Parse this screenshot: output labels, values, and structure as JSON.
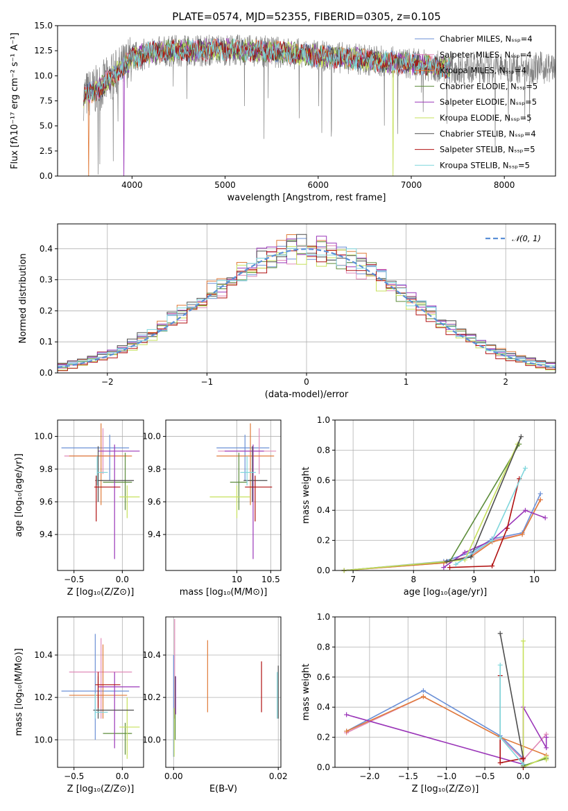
{
  "colors": {
    "chabrier_miles": "#6a8fd6",
    "salpeter_miles": "#e08ab8",
    "kroupa_miles": "#e07b3a",
    "chabrier_elodie": "#5c8c3a",
    "salpeter_elodie": "#9a35b8",
    "kroupa_elodie": "#c6e05a",
    "chabrier_stelib": "#4d4d4d",
    "salpeter_stelib": "#b01010",
    "kroupa_stelib": "#7fd6dc",
    "data": "#808080",
    "normal": "#5b8fd6"
  },
  "chart_data": [
    {
      "type": "line",
      "title": "PLATE=0574, MJD=52355, FIBERID=0305, z=0.105",
      "xlabel": "wavelength [Angstrom, rest frame]",
      "ylabel": "Flux [fλ10⁻¹⁷ erg cm⁻² s⁻¹ A⁻¹]",
      "xlim": [
        3200,
        8550
      ],
      "ylim": [
        0,
        15
      ],
      "xticks": [
        "4000",
        "5000",
        "6000",
        "7000",
        "8000"
      ],
      "yticks": [
        "0.0",
        "2.5",
        "5.0",
        "7.5",
        "10.0",
        "12.5",
        "15.0"
      ],
      "legend_position": "right",
      "legend": [
        "Chabrier MILES, Nₛₛₚ=4",
        "Salpeter MILES, Nₛₛₚ=4",
        "Kroupa MILES, Nₛₛₚ=4",
        "Chabrier ELODIE, Nₛₛₚ=5",
        "Salpeter ELODIE, Nₛₛₚ=5",
        "Kroupa ELODIE, Nₛₛₚ=5",
        "Chabrier STELIB, Nₛₛₚ=4",
        "Salpeter STELIB, Nₛₛₚ=5",
        "Kroupa STELIB, Nₛₛₚ=5"
      ],
      "continuum": {
        "x": [
          3480,
          3600,
          3700,
          3800,
          3900,
          4000,
          4200,
          4500,
          5000,
          5500,
          6000,
          6500,
          7000,
          7400
        ],
        "y": [
          8.0,
          8.5,
          9.2,
          10.0,
          10.8,
          11.8,
          12.3,
          12.5,
          12.6,
          12.4,
          12.0,
          11.6,
          11.2,
          10.8
        ]
      },
      "data_x_range": [
        3480,
        8550
      ]
    },
    {
      "type": "line",
      "xlabel": "(data-model)/error",
      "ylabel": "Normed distribution",
      "xlim": [
        -2.5,
        2.5
      ],
      "ylim": [
        0,
        0.48
      ],
      "xticks": [
        "−2",
        "−1",
        "0",
        "1",
        "2"
      ],
      "yticks": [
        "0.0",
        "0.1",
        "0.2",
        "0.3",
        "0.4"
      ],
      "legend": [
        "𝒩(0, 1)"
      ],
      "bin_width": 0.1,
      "series": [
        {
          "name": "Chabrier MILES",
          "offset": 0.004
        },
        {
          "name": "Salpeter MILES",
          "offset": -0.006
        },
        {
          "name": "Kroupa MILES",
          "offset": 0.008
        },
        {
          "name": "Chabrier ELODIE",
          "offset": -0.004
        },
        {
          "name": "Salpeter ELODIE",
          "offset": 0.006
        },
        {
          "name": "Kroupa ELODIE",
          "offset": -0.012
        },
        {
          "name": "Chabrier STELIB",
          "offset": 0.01
        },
        {
          "name": "Salpeter STELIB",
          "offset": -0.014
        },
        {
          "name": "Kroupa STELIB",
          "offset": 0.0
        }
      ]
    },
    {
      "type": "scatter",
      "xlabel": "Z [log₁₀(Z/Z⊙)]",
      "ylabel": "age  [log₁₀(age/yr)]",
      "xlim": [
        -0.67,
        0.22
      ],
      "ylim": [
        9.18,
        10.1
      ],
      "xticks": [
        "−0.5",
        "0.0"
      ],
      "yticks": [
        "9.4",
        "9.6",
        "9.8",
        "10.0"
      ],
      "points": [
        {
          "x": -0.13,
          "y": 9.93,
          "ex": [
            -0.63,
            0.07
          ],
          "ey": [
            9.73,
            10.01
          ]
        },
        {
          "x": -0.2,
          "y": 9.88,
          "ex": [
            -0.6,
            0.05
          ],
          "ey": [
            9.77,
            10.05
          ]
        },
        {
          "x": -0.22,
          "y": 9.88,
          "ex": [
            -0.55,
            0.1
          ],
          "ey": [
            9.58,
            10.08
          ]
        },
        {
          "x": 0.03,
          "y": 9.72,
          "ex": [
            -0.2,
            0.1
          ],
          "ey": [
            9.55,
            9.9
          ]
        },
        {
          "x": -0.08,
          "y": 9.91,
          "ex": [
            -0.25,
            0.18
          ],
          "ey": [
            9.25,
            9.95
          ]
        },
        {
          "x": 0.05,
          "y": 9.63,
          "ex": [
            -0.03,
            0.18
          ],
          "ey": [
            9.5,
            9.7
          ]
        },
        {
          "x": -0.25,
          "y": 9.73,
          "ex": [
            -0.28,
            0.12
          ],
          "ey": [
            9.6,
            9.94
          ]
        },
        {
          "x": -0.27,
          "y": 9.69,
          "ex": [
            -0.29,
            -0.02
          ],
          "ey": [
            9.48,
            9.76
          ]
        },
        {
          "x": -0.26,
          "y": 9.78,
          "ex": [
            -0.26,
            -0.15
          ],
          "ey": [
            9.7,
            9.88
          ]
        }
      ]
    },
    {
      "type": "scatter",
      "xlabel": "mass [log₁₀(M/M⊙)]",
      "xlim": [
        8.95,
        10.65
      ],
      "ylim": [
        9.18,
        10.1
      ],
      "xticks": [
        "10",
        "10.5"
      ],
      "yticks": [
        "9.4",
        "9.6",
        "9.8",
        "10.0"
      ],
      "points": [
        {
          "x": 10.12,
          "y": 9.93,
          "ex": [
            9.7,
            10.48
          ],
          "ey": [
            9.73,
            10.01
          ]
        },
        {
          "x": 10.33,
          "y": 9.91,
          "ex": [
            9.72,
            10.58
          ],
          "ey": [
            9.77,
            10.05
          ]
        },
        {
          "x": 10.2,
          "y": 9.88,
          "ex": [
            9.7,
            10.55
          ],
          "ey": [
            9.58,
            10.08
          ]
        },
        {
          "x": 10.03,
          "y": 9.72,
          "ex": [
            9.9,
            10.15
          ],
          "ey": [
            9.55,
            9.9
          ]
        },
        {
          "x": 10.24,
          "y": 9.91,
          "ex": [
            9.82,
            10.4
          ],
          "ey": [
            9.25,
            9.95
          ]
        },
        {
          "x": 10.0,
          "y": 9.63,
          "ex": [
            9.6,
            10.2
          ],
          "ey": [
            9.5,
            9.7
          ]
        },
        {
          "x": 10.23,
          "y": 9.73,
          "ex": [
            10.1,
            10.45
          ],
          "ey": [
            9.6,
            9.94
          ]
        },
        {
          "x": 10.27,
          "y": 9.69,
          "ex": [
            10.12,
            10.52
          ],
          "ey": [
            9.48,
            9.76
          ]
        },
        {
          "x": 10.15,
          "y": 9.78,
          "ex": [
            10.05,
            10.28
          ],
          "ey": [
            9.7,
            9.88
          ]
        }
      ]
    },
    {
      "type": "line",
      "xlabel": "age  [log₁₀(age/yr)]",
      "ylabel": "mass weight",
      "xlim": [
        6.7,
        10.35
      ],
      "ylim": [
        0,
        1.0
      ],
      "xticks": [
        "7",
        "8",
        "9",
        "10"
      ],
      "yticks": [
        "0.0",
        "0.2",
        "0.4",
        "0.6",
        "0.8",
        "1.0"
      ],
      "series": [
        {
          "name": "Chabrier MILES",
          "x": [
            6.85,
            8.5,
            8.95,
            9.3,
            9.8,
            10.1
          ],
          "y": [
            0.0,
            0.06,
            0.12,
            0.21,
            0.25,
            0.51
          ]
        },
        {
          "name": "Salpeter MILES",
          "x": [
            6.85,
            8.5,
            8.95,
            9.3,
            9.8,
            10.1
          ],
          "y": [
            0.0,
            0.05,
            0.1,
            0.2,
            0.24,
            0.47
          ]
        },
        {
          "name": "Kroupa MILES",
          "x": [
            6.85,
            8.5,
            8.95,
            9.3,
            9.8,
            10.1
          ],
          "y": [
            0.0,
            0.05,
            0.09,
            0.19,
            0.24,
            0.47
          ]
        },
        {
          "name": "Chabrier ELODIE",
          "x": [
            6.85,
            8.6,
            9.75
          ],
          "y": [
            0.0,
            0.06,
            0.84
          ]
        },
        {
          "name": "Salpeter ELODIE",
          "x": [
            8.5,
            8.85,
            9.3,
            9.85,
            10.18
          ],
          "y": [
            0.02,
            0.12,
            0.2,
            0.4,
            0.35
          ]
        },
        {
          "name": "Kroupa ELODIE",
          "x": [
            6.85,
            8.85,
            9.72
          ],
          "y": [
            0.0,
            0.07,
            0.84
          ]
        },
        {
          "name": "Chabrier STELIB",
          "x": [
            8.55,
            8.95,
            9.78
          ],
          "y": [
            0.06,
            0.09,
            0.89
          ]
        },
        {
          "name": "Salpeter STELIB",
          "x": [
            8.6,
            9.3,
            9.55,
            9.75
          ],
          "y": [
            0.02,
            0.03,
            0.28,
            0.61
          ]
        },
        {
          "name": "Kroupa STELIB",
          "x": [
            8.7,
            9.3,
            9.85
          ],
          "y": [
            0.04,
            0.2,
            0.68
          ]
        }
      ]
    },
    {
      "type": "scatter",
      "xlabel": "Z [log₁₀(Z/Z⊙)]",
      "ylabel": "mass [log₁₀(M/M⊙)]",
      "xlim": [
        -0.67,
        0.22
      ],
      "ylim": [
        9.87,
        10.58
      ],
      "xticks": [
        "−0.5",
        "0.0"
      ],
      "yticks": [
        "10.0",
        "10.2",
        "10.4"
      ],
      "points": [
        {
          "x": -0.28,
          "y": 10.23,
          "ex": [
            -0.63,
            0.07
          ],
          "ey": [
            10.0,
            10.5
          ]
        },
        {
          "x": -0.22,
          "y": 10.32,
          "ex": [
            -0.55,
            0.1
          ],
          "ey": [
            10.1,
            10.48
          ]
        },
        {
          "x": -0.2,
          "y": 10.21,
          "ex": [
            -0.55,
            0.05
          ],
          "ey": [
            10.1,
            10.45
          ]
        },
        {
          "x": 0.03,
          "y": 10.03,
          "ex": [
            -0.2,
            0.1
          ],
          "ey": [
            9.93,
            10.08
          ]
        },
        {
          "x": -0.08,
          "y": 10.25,
          "ex": [
            -0.25,
            0.18
          ],
          "ey": [
            9.96,
            10.32
          ]
        },
        {
          "x": 0.05,
          "y": 10.06,
          "ex": [
            -0.03,
            0.18
          ],
          "ey": [
            9.91,
            10.2
          ]
        },
        {
          "x": -0.25,
          "y": 10.14,
          "ex": [
            -0.3,
            0.12
          ],
          "ey": [
            10.1,
            10.3
          ]
        },
        {
          "x": -0.25,
          "y": 10.26,
          "ex": [
            -0.28,
            -0.02
          ],
          "ey": [
            10.15,
            10.32
          ]
        },
        {
          "x": -0.28,
          "y": 10.13,
          "ex": [
            -0.28,
            -0.15
          ],
          "ey": [
            10.1,
            10.22
          ]
        }
      ]
    },
    {
      "type": "scatter",
      "xlabel": "E(B-V)",
      "xlim": [
        -0.0015,
        0.0205
      ],
      "ylim": [
        9.87,
        10.58
      ],
      "xticks": [
        "0.00",
        "0.02"
      ],
      "yticks": [
        "10.0",
        "10.2",
        "10.4"
      ],
      "points": [
        {
          "x": 0.0,
          "y": 10.2,
          "ey": [
            9.92,
            10.4
          ]
        },
        {
          "x": 0.0002,
          "y": 10.3,
          "ey": [
            10.1,
            10.57
          ]
        },
        {
          "x": 0.0065,
          "y": 10.3,
          "ey": [
            10.13,
            10.47
          ]
        },
        {
          "x": 0.0003,
          "y": 10.15,
          "ey": [
            10.0,
            10.3
          ]
        },
        {
          "x": 0.0004,
          "y": 10.25,
          "ey": [
            10.12,
            10.3
          ]
        },
        {
          "x": 0.0001,
          "y": 10.05,
          "ey": [
            9.92,
            10.15
          ]
        },
        {
          "x": 0.02,
          "y": 10.3,
          "ey": [
            10.1,
            10.35
          ]
        },
        {
          "x": 0.0168,
          "y": 10.25,
          "ey": [
            10.13,
            10.37
          ]
        },
        {
          "x": 0.0198,
          "y": 10.2,
          "ey": [
            10.1,
            10.32
          ]
        }
      ]
    },
    {
      "type": "line",
      "xlabel": "Z [log₁₀(Z/Z⊙)]",
      "ylabel": "mass weight",
      "xlim": [
        -2.45,
        0.42
      ],
      "ylim": [
        0,
        1.0
      ],
      "xticks": [
        "−2.0",
        "−1.5",
        "−1.0",
        "−0.5",
        "0.0"
      ],
      "yticks": [
        "0.0",
        "0.2",
        "0.4",
        "0.6",
        "0.8",
        "1.0"
      ],
      "series": [
        {
          "name": "Chabrier MILES",
          "x": [
            -2.3,
            -1.3,
            -0.3,
            0.0
          ],
          "y": [
            0.24,
            0.51,
            0.21,
            0.06
          ]
        },
        {
          "name": "Salpeter MILES",
          "x": [
            -2.3,
            -1.3,
            -0.3,
            0.0,
            0.3
          ],
          "y": [
            0.23,
            0.47,
            0.2,
            0.05,
            0.22
          ]
        },
        {
          "name": "Kroupa MILES",
          "x": [
            -2.3,
            -1.3,
            -0.3,
            0.3
          ],
          "y": [
            0.24,
            0.47,
            0.2,
            0.08
          ]
        },
        {
          "name": "Chabrier ELODIE",
          "x": [
            0.0,
            0.3
          ],
          "y": [
            0.01,
            0.06
          ]
        },
        {
          "name": "Salpeter ELODIE",
          "x": [
            -2.3,
            0.0,
            0.0,
            0.3,
            0.3
          ],
          "y": [
            0.35,
            0.02,
            0.4,
            0.13,
            0.2
          ]
        },
        {
          "name": "Kroupa ELODIE",
          "x": [
            0.0,
            0.0,
            0.3,
            0.3
          ],
          "y": [
            0.84,
            0.0,
            0.07,
            0.05
          ]
        },
        {
          "name": "Chabrier STELIB",
          "x": [
            -0.3,
            0.0,
            0.0
          ],
          "y": [
            0.89,
            0.06,
            0.02
          ]
        },
        {
          "name": "Salpeter STELIB",
          "x": [
            -0.3,
            -0.3,
            0.0,
            0.0
          ],
          "y": [
            0.61,
            0.03,
            0.06,
            0.0
          ]
        },
        {
          "name": "Kroupa STELIB",
          "x": [
            -0.3,
            -0.3,
            0.0
          ],
          "y": [
            0.68,
            0.2,
            0.02
          ]
        }
      ]
    }
  ]
}
